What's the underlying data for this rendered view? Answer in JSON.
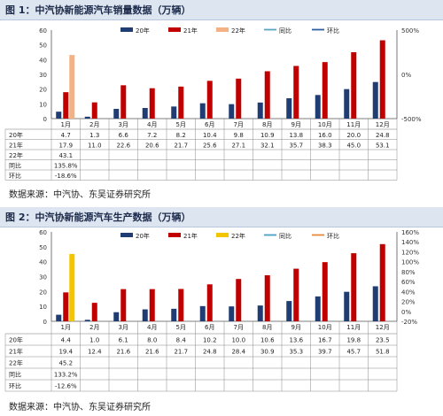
{
  "chart_data": [
    {
      "type": "bar",
      "title": "图 1：中汽协新能源汽车销量数据（万辆）",
      "categories": [
        "1月",
        "2月",
        "3月",
        "4月",
        "5月",
        "6月",
        "7月",
        "8月",
        "9月",
        "10月",
        "11月",
        "12月"
      ],
      "series": [
        {
          "name": "20年",
          "values": [
            4.7,
            1.3,
            6.6,
            7.2,
            8.2,
            10.4,
            9.8,
            10.9,
            13.8,
            16.0,
            20.0,
            24.8
          ],
          "labels": [
            "4.7",
            "1.3",
            "6.6",
            "7.2",
            "8.2",
            "10.4",
            "9.8",
            "10.9",
            "13.8",
            "16.0",
            "20.0",
            "24.8"
          ]
        },
        {
          "name": "21年",
          "values": [
            17.9,
            11.0,
            22.6,
            20.6,
            21.7,
            25.6,
            27.1,
            32.1,
            35.7,
            38.3,
            45.0,
            53.1
          ],
          "labels": [
            "17.9",
            "11.0",
            "22.6",
            "20.6",
            "21.7",
            "25.6",
            "27.1",
            "32.1",
            "35.7",
            "38.3",
            "45.0",
            "53.1"
          ]
        },
        {
          "name": "22年",
          "values": [
            43.1,
            null,
            null,
            null,
            null,
            null,
            null,
            null,
            null,
            null,
            null,
            null
          ],
          "labels": [
            "43.1",
            "",
            "",
            "",
            "",
            "",
            "",
            "",
            "",
            "",
            "",
            ""
          ]
        },
        {
          "name": "同比",
          "values": [
            135.8,
            null,
            null,
            null,
            null,
            null,
            null,
            null,
            null,
            null,
            null,
            null
          ],
          "labels": [
            "135.8%",
            "",
            "",
            "",
            "",
            "",
            "",
            "",
            "",
            "",
            "",
            ""
          ]
        },
        {
          "name": "环比",
          "values": [
            -18.6,
            null,
            null,
            null,
            null,
            null,
            null,
            null,
            null,
            null,
            null,
            null
          ],
          "labels": [
            "-18.6%",
            "",
            "",
            "",
            "",
            "",
            "",
            "",
            "",
            "",
            "",
            ""
          ]
        }
      ],
      "yticks": [
        "0",
        "10",
        "20",
        "30",
        "40",
        "50",
        "60"
      ],
      "ylim": [
        0,
        60
      ],
      "y2ticks": [
        "500%",
        "0%",
        "-500%"
      ],
      "y2lim": [
        -500,
        500
      ],
      "legend": "top",
      "source": "数据来源：中汽协、东吴证券研究所"
    },
    {
      "type": "bar",
      "title": "图 2：中汽协新能源汽车生产数据（万辆）",
      "categories": [
        "1月",
        "2月",
        "3月",
        "4月",
        "5月",
        "6月",
        "7月",
        "8月",
        "9月",
        "10月",
        "11月",
        "12月"
      ],
      "series": [
        {
          "name": "20年",
          "values": [
            4.4,
            1.0,
            6.1,
            8.0,
            8.4,
            10.2,
            10.0,
            10.6,
            13.6,
            16.7,
            19.8,
            23.5
          ],
          "labels": [
            "4.4",
            "1.0",
            "6.1",
            "8.0",
            "8.4",
            "10.2",
            "10.0",
            "10.6",
            "13.6",
            "16.7",
            "19.8",
            "23.5"
          ]
        },
        {
          "name": "21年",
          "values": [
            19.4,
            12.4,
            21.6,
            21.6,
            21.7,
            24.8,
            28.4,
            30.9,
            35.3,
            39.7,
            45.7,
            51.8
          ],
          "labels": [
            "19.4",
            "12.4",
            "21.6",
            "21.6",
            "21.7",
            "24.8",
            "28.4",
            "30.9",
            "35.3",
            "39.7",
            "45.7",
            "51.8"
          ]
        },
        {
          "name": "22年",
          "values": [
            45.2,
            null,
            null,
            null,
            null,
            null,
            null,
            null,
            null,
            null,
            null,
            null
          ],
          "labels": [
            "45.2",
            "",
            "",
            "",
            "",
            "",
            "",
            "",
            "",
            "",
            "",
            ""
          ]
        },
        {
          "name": "同比",
          "values": [
            133.2,
            null,
            null,
            null,
            null,
            null,
            null,
            null,
            null,
            null,
            null,
            null
          ],
          "labels": [
            "133.2%",
            "",
            "",
            "",
            "",
            "",
            "",
            "",
            "",
            "",
            "",
            ""
          ]
        },
        {
          "name": "环比",
          "values": [
            -12.6,
            null,
            null,
            null,
            null,
            null,
            null,
            null,
            null,
            null,
            null,
            null
          ],
          "labels": [
            "-12.6%",
            "",
            "",
            "",
            "",
            "",
            "",
            "",
            "",
            "",
            "",
            ""
          ]
        }
      ],
      "yticks": [
        "0",
        "10",
        "20",
        "30",
        "40",
        "50",
        "60"
      ],
      "ylim": [
        0,
        60
      ],
      "y2ticks": [
        "160%",
        "140%",
        "120%",
        "100%",
        "80%",
        "60%",
        "40%",
        "20%",
        "0%",
        "-20%"
      ],
      "y2lim": [
        -20,
        160
      ],
      "legend": "top",
      "source": "数据来源：中汽协、东吴证券研究所"
    }
  ],
  "colors": {
    "s20": "#1f3d73",
    "s21": "#c00000",
    "s22_chart1": "#f4b183",
    "s22_chart2": "#f2c500",
    "yoy_chart1": "#5ba3c4",
    "yoy_chart2": "#4e9fc3",
    "mom_chart1": "#2e5fa3",
    "mom_chart2": "#e8883a",
    "title_bar": "#dde5f1"
  }
}
